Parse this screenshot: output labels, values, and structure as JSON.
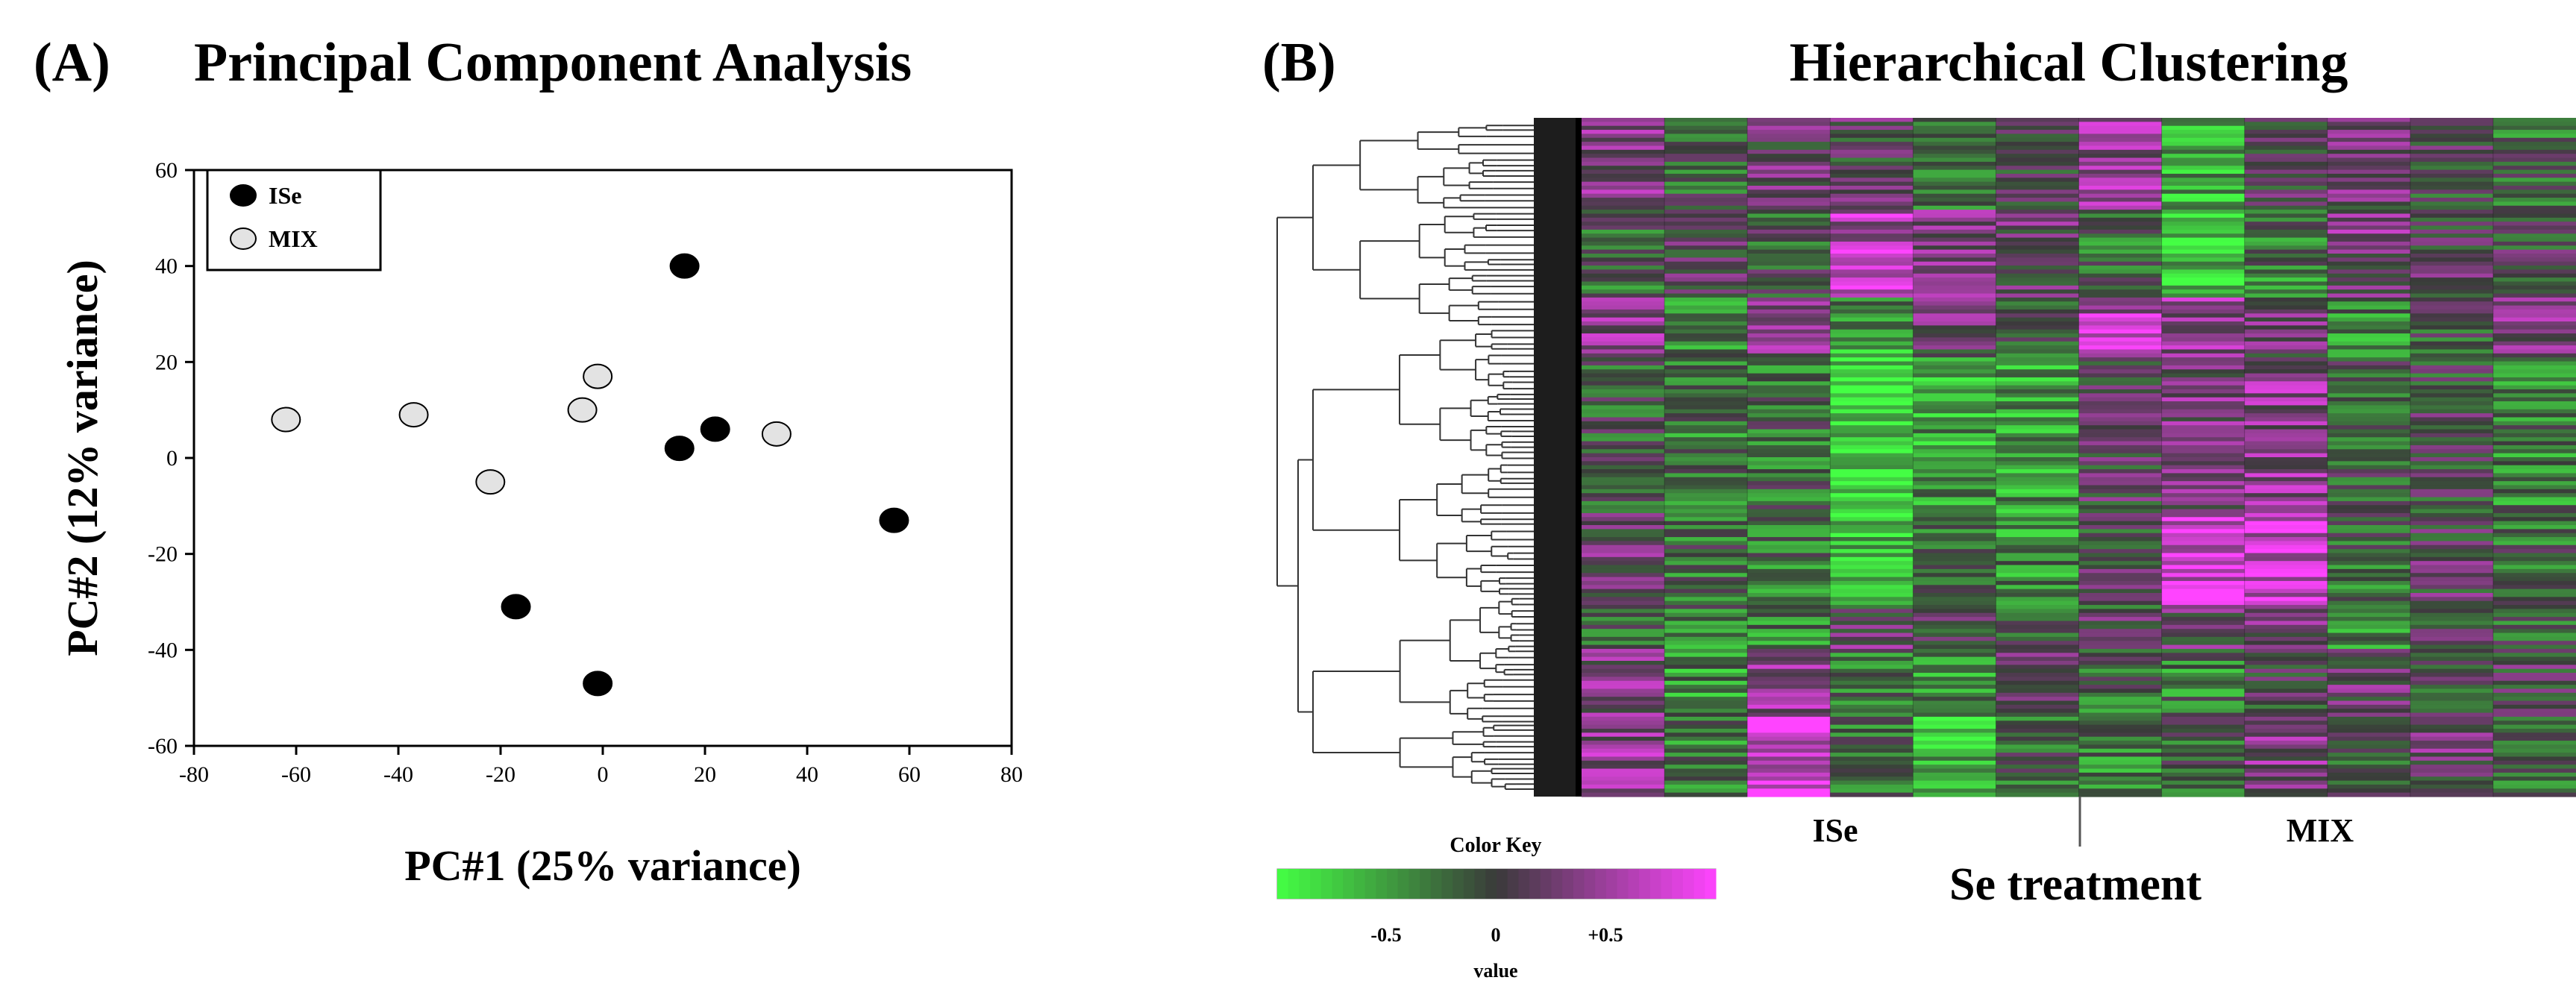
{
  "chart_data": [
    {
      "type": "scatter",
      "panel_label": "(A)",
      "title": "Principal Component Analysis",
      "xlabel": "PC#1 (25% variance)",
      "ylabel": "PC#2 (12% variance)",
      "xlim": [
        -80,
        80
      ],
      "ylim": [
        -60,
        60
      ],
      "xticks": [
        -80,
        -60,
        -40,
        -20,
        0,
        20,
        40,
        60,
        80
      ],
      "yticks": [
        -60,
        -40,
        -20,
        0,
        20,
        40,
        60
      ],
      "legend_position": "top-left",
      "series": [
        {
          "name": "ISe",
          "color": "#000000",
          "points": [
            [
              16,
              40
            ],
            [
              15,
              2
            ],
            [
              22,
              6
            ],
            [
              57,
              -13
            ],
            [
              -17,
              -31
            ],
            [
              -1,
              -47
            ]
          ]
        },
        {
          "name": "MIX",
          "color": "#e3e3e3",
          "points": [
            [
              -62,
              8
            ],
            [
              -37,
              9
            ],
            [
              -1,
              17
            ],
            [
              -4,
              10
            ],
            [
              -22,
              -5
            ],
            [
              34,
              5
            ]
          ]
        }
      ]
    },
    {
      "type": "heatmap",
      "panel_label": "(B)",
      "title": "Hierarchical Clustering",
      "xlabel": "Se treatment",
      "groups": [
        "ISe",
        "MIX"
      ],
      "n_columns": 12,
      "color_key": {
        "title": "Color Key",
        "xlabel": "value",
        "tick_labels": [
          "-0.5",
          "0",
          "+0.5"
        ],
        "range": [
          -1,
          1
        ],
        "low_color": "#44ff44",
        "mid_color": "#3a3a3a",
        "high_color": "#ff44ff"
      }
    }
  ]
}
